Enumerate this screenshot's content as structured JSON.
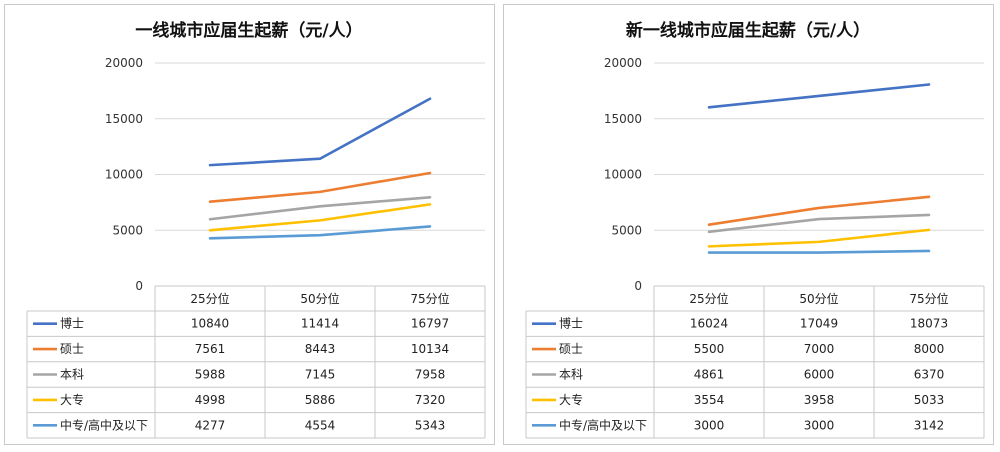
{
  "colors": {
    "博士": "#4472C4",
    "硕士": "#ED7D31",
    "本科": "#A5A5A5",
    "大专": "#FFC000",
    "中专/高中及以下": "#5B9BD5"
  },
  "chart_data": [
    {
      "type": "line",
      "title": "一线城市应届生起薪（元/人）",
      "categories": [
        "25分位",
        "50分位",
        "75分位"
      ],
      "ylim": [
        0,
        20000
      ],
      "yticks": [
        0,
        5000,
        10000,
        15000,
        20000
      ],
      "grid": true,
      "legend": "data-table",
      "series": [
        {
          "name": "博士",
          "values": [
            10840,
            11414,
            16797
          ]
        },
        {
          "name": "硕士",
          "values": [
            7561,
            8443,
            10134
          ]
        },
        {
          "name": "本科",
          "values": [
            5988,
            7145,
            7958
          ]
        },
        {
          "name": "大专",
          "values": [
            4998,
            5886,
            7320
          ]
        },
        {
          "name": "中专/高中及以下",
          "values": [
            4277,
            4554,
            5343
          ]
        }
      ]
    },
    {
      "type": "line",
      "title": "新一线城市应届生起薪（元/人）",
      "categories": [
        "25分位",
        "50分位",
        "75分位"
      ],
      "ylim": [
        0,
        20000
      ],
      "yticks": [
        0,
        5000,
        10000,
        15000,
        20000
      ],
      "grid": true,
      "legend": "data-table",
      "series": [
        {
          "name": "博士",
          "values": [
            16024,
            17049,
            18073
          ]
        },
        {
          "name": "硕士",
          "values": [
            5500,
            7000,
            8000
          ]
        },
        {
          "name": "本科",
          "values": [
            4861,
            6000,
            6370
          ]
        },
        {
          "name": "大专",
          "values": [
            3554,
            3958,
            5033
          ]
        },
        {
          "name": "中专/高中及以下",
          "values": [
            3000,
            3000,
            3142
          ]
        }
      ]
    }
  ]
}
